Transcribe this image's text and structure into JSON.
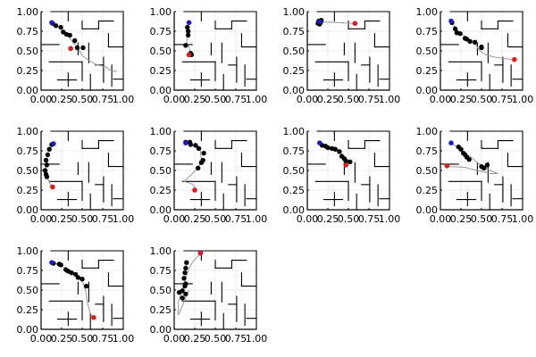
{
  "chart_data": {
    "type": "scatter",
    "layout": "grid 3 rows x 4 columns, 10 panels",
    "axis": {
      "xlim": [
        0,
        1
      ],
      "ylim": [
        0,
        1
      ],
      "xticks": [
        0.0,
        0.25,
        0.5,
        0.75,
        1.0
      ],
      "yticks": [
        0.0,
        0.25,
        0.5,
        0.75,
        1.0
      ],
      "xtick_labels": [
        "0.00",
        "0.25",
        "0.50",
        "0.75",
        "1.00"
      ],
      "ytick_labels": [
        "0.00",
        "0.25",
        "0.50",
        "0.75",
        "1.00"
      ],
      "grid": true
    },
    "colors": {
      "path": "#999999",
      "waypoint": "#000000",
      "start": "#1a1ad0",
      "end": "#dd1c1c",
      "wall": "#000000",
      "grid": "#e6e6e6"
    },
    "maze_walls": [
      [
        [
          0.12,
          1.0
        ],
        [
          1.0,
          1.0
        ]
      ],
      [
        [
          1.0,
          1.0
        ],
        [
          1.0,
          0.0
        ]
      ],
      [
        [
          0.0,
          0.0
        ],
        [
          1.0,
          0.0
        ]
      ],
      [
        [
          0.33,
          0.88
        ],
        [
          0.33,
          1.0
        ]
      ],
      [
        [
          0.5,
          0.88
        ],
        [
          0.5,
          0.78
        ]
      ],
      [
        [
          0.5,
          0.78
        ],
        [
          0.7,
          0.78
        ]
      ],
      [
        [
          0.7,
          0.78
        ],
        [
          0.7,
          0.88
        ]
      ],
      [
        [
          0.7,
          0.88
        ],
        [
          0.88,
          0.88
        ]
      ],
      [
        [
          0.0,
          0.58
        ],
        [
          0.22,
          0.58
        ]
      ],
      [
        [
          0.45,
          0.6
        ],
        [
          0.45,
          0.45
        ]
      ],
      [
        [
          0.58,
          0.6
        ],
        [
          0.58,
          0.35
        ]
      ],
      [
        [
          0.82,
          0.72
        ],
        [
          0.82,
          0.55
        ]
      ],
      [
        [
          0.82,
          0.55
        ],
        [
          1.0,
          0.55
        ]
      ],
      [
        [
          0.1,
          0.36
        ],
        [
          0.5,
          0.36
        ]
      ],
      [
        [
          0.5,
          0.36
        ],
        [
          0.5,
          0.12
        ]
      ],
      [
        [
          0.66,
          0.32
        ],
        [
          0.76,
          0.32
        ]
      ],
      [
        [
          0.76,
          0.42
        ],
        [
          0.76,
          0.1
        ]
      ],
      [
        [
          0.86,
          0.32
        ],
        [
          0.86,
          0.05
        ]
      ],
      [
        [
          0.33,
          0.22
        ],
        [
          0.33,
          0.05
        ]
      ],
      [
        [
          0.2,
          0.13
        ],
        [
          0.43,
          0.13
        ]
      ],
      [
        [
          0.6,
          0.2
        ],
        [
          0.6,
          0.0
        ]
      ],
      [
        [
          0.88,
          0.14
        ],
        [
          1.0,
          0.14
        ]
      ]
    ],
    "panels": [
      {
        "path": [
          [
            0.13,
            0.85
          ],
          [
            0.22,
            0.8
          ],
          [
            0.3,
            0.72
          ],
          [
            0.38,
            0.62
          ],
          [
            0.44,
            0.55
          ],
          [
            0.5,
            0.44
          ],
          [
            0.58,
            0.38
          ],
          [
            0.68,
            0.32
          ],
          [
            0.78,
            0.3
          ],
          [
            0.86,
            0.24
          ],
          [
            0.92,
            0.24
          ]
        ],
        "points": [
          [
            0.14,
            0.85
          ],
          [
            0.18,
            0.82
          ],
          [
            0.24,
            0.8
          ],
          [
            0.27,
            0.74
          ],
          [
            0.31,
            0.71
          ],
          [
            0.35,
            0.7
          ],
          [
            0.41,
            0.63
          ],
          [
            0.44,
            0.54
          ],
          [
            0.51,
            0.54
          ]
        ],
        "start": [
          0.13,
          0.86
        ],
        "end": [
          0.36,
          0.53
        ]
      },
      {
        "path": [
          [
            0.16,
            0.85
          ],
          [
            0.18,
            0.78
          ],
          [
            0.15,
            0.62
          ],
          [
            0.18,
            0.55
          ],
          [
            0.2,
            0.46
          ],
          [
            0.2,
            0.43
          ]
        ],
        "points": [
          [
            0.16,
            0.8
          ],
          [
            0.17,
            0.75
          ],
          [
            0.17,
            0.7
          ],
          [
            0.14,
            0.57
          ],
          [
            0.2,
            0.47
          ],
          [
            0.21,
            0.45
          ]
        ],
        "start": [
          0.18,
          0.86
        ],
        "end": [
          0.18,
          0.45
        ]
      },
      {
        "path": [
          [
            0.14,
            0.87
          ],
          [
            0.58,
            0.85
          ]
        ],
        "points": [
          [
            0.14,
            0.88
          ],
          [
            0.16,
            0.86
          ],
          [
            0.15,
            0.84
          ],
          [
            0.17,
            0.89
          ],
          [
            0.13,
            0.85
          ]
        ],
        "start": [
          0.15,
          0.87
        ],
        "end": [
          0.58,
          0.85
        ]
      },
      {
        "path": [
          [
            0.13,
            0.87
          ],
          [
            0.22,
            0.75
          ],
          [
            0.3,
            0.68
          ],
          [
            0.4,
            0.62
          ],
          [
            0.48,
            0.5
          ],
          [
            0.55,
            0.45
          ],
          [
            0.66,
            0.42
          ],
          [
            0.78,
            0.4
          ],
          [
            0.9,
            0.39
          ]
        ],
        "points": [
          [
            0.14,
            0.86
          ],
          [
            0.18,
            0.78
          ],
          [
            0.2,
            0.73
          ],
          [
            0.24,
            0.72
          ],
          [
            0.3,
            0.66
          ],
          [
            0.32,
            0.65
          ],
          [
            0.36,
            0.62
          ],
          [
            0.42,
            0.61
          ],
          [
            0.5,
            0.55
          ],
          [
            0.5,
            0.54
          ]
        ],
        "start": [
          0.13,
          0.88
        ],
        "end": [
          0.9,
          0.39
        ]
      },
      {
        "path": [
          [
            0.15,
            0.85
          ],
          [
            0.08,
            0.72
          ],
          [
            0.06,
            0.6
          ],
          [
            0.05,
            0.5
          ],
          [
            0.08,
            0.4
          ],
          [
            0.12,
            0.3
          ]
        ],
        "points": [
          [
            0.13,
            0.83
          ],
          [
            0.1,
            0.77
          ],
          [
            0.08,
            0.7
          ],
          [
            0.06,
            0.63
          ],
          [
            0.07,
            0.57
          ],
          [
            0.05,
            0.5
          ],
          [
            0.06,
            0.45
          ],
          [
            0.07,
            0.42
          ]
        ],
        "start": [
          0.15,
          0.84
        ],
        "end": [
          0.14,
          0.29
        ]
      },
      {
        "path": [
          [
            0.12,
            0.85
          ],
          [
            0.24,
            0.82
          ],
          [
            0.32,
            0.75
          ],
          [
            0.33,
            0.62
          ],
          [
            0.28,
            0.52
          ],
          [
            0.18,
            0.42
          ],
          [
            0.12,
            0.36
          ],
          [
            0.22,
            0.33
          ],
          [
            0.26,
            0.28
          ]
        ],
        "points": [
          [
            0.14,
            0.86
          ],
          [
            0.19,
            0.86
          ],
          [
            0.2,
            0.83
          ],
          [
            0.26,
            0.82
          ],
          [
            0.3,
            0.78
          ],
          [
            0.36,
            0.72
          ],
          [
            0.35,
            0.63
          ],
          [
            0.33,
            0.6
          ],
          [
            0.29,
            0.53
          ]
        ],
        "start": [
          0.14,
          0.85
        ],
        "end": [
          0.25,
          0.25
        ]
      },
      {
        "path": [
          [
            0.15,
            0.85
          ],
          [
            0.25,
            0.8
          ],
          [
            0.38,
            0.75
          ],
          [
            0.45,
            0.68
          ],
          [
            0.5,
            0.6
          ],
          [
            0.47,
            0.55
          ]
        ],
        "points": [
          [
            0.18,
            0.82
          ],
          [
            0.22,
            0.81
          ],
          [
            0.25,
            0.79
          ],
          [
            0.3,
            0.78
          ],
          [
            0.34,
            0.77
          ],
          [
            0.39,
            0.74
          ],
          [
            0.42,
            0.68
          ],
          [
            0.45,
            0.65
          ],
          [
            0.47,
            0.62
          ],
          [
            0.52,
            0.61
          ]
        ],
        "start": [
          0.15,
          0.85
        ],
        "end": [
          0.47,
          0.57
        ]
      },
      {
        "path": [
          [
            0.13,
            0.85
          ],
          [
            0.2,
            0.8
          ],
          [
            0.28,
            0.72
          ],
          [
            0.36,
            0.68
          ],
          [
            0.45,
            0.6
          ],
          [
            0.52,
            0.55
          ],
          [
            0.6,
            0.5
          ],
          [
            0.7,
            0.46
          ],
          [
            0.62,
            0.46
          ],
          [
            0.45,
            0.5
          ],
          [
            0.3,
            0.54
          ],
          [
            0.1,
            0.55
          ]
        ],
        "points": [
          [
            0.22,
            0.8
          ],
          [
            0.25,
            0.77
          ],
          [
            0.28,
            0.72
          ],
          [
            0.3,
            0.7
          ],
          [
            0.32,
            0.67
          ],
          [
            0.35,
            0.64
          ],
          [
            0.5,
            0.55
          ],
          [
            0.53,
            0.53
          ],
          [
            0.57,
            0.57
          ]
        ],
        "start": [
          0.13,
          0.85
        ],
        "end": [
          0.08,
          0.56
        ]
      },
      {
        "path": [
          [
            0.12,
            0.85
          ],
          [
            0.22,
            0.83
          ],
          [
            0.32,
            0.76
          ],
          [
            0.42,
            0.7
          ],
          [
            0.5,
            0.62
          ],
          [
            0.54,
            0.5
          ],
          [
            0.56,
            0.35
          ],
          [
            0.6,
            0.2
          ],
          [
            0.64,
            0.15
          ]
        ],
        "points": [
          [
            0.15,
            0.84
          ],
          [
            0.22,
            0.83
          ],
          [
            0.24,
            0.82
          ],
          [
            0.3,
            0.76
          ],
          [
            0.33,
            0.74
          ],
          [
            0.37,
            0.72
          ],
          [
            0.42,
            0.7
          ],
          [
            0.45,
            0.66
          ],
          [
            0.5,
            0.64
          ],
          [
            0.55,
            0.55
          ]
        ],
        "start": [
          0.13,
          0.85
        ],
        "end": [
          0.64,
          0.15
        ]
      },
      {
        "path": [
          [
            0.32,
            0.97
          ],
          [
            0.22,
            0.85
          ],
          [
            0.16,
            0.72
          ],
          [
            0.1,
            0.5
          ],
          [
            0.05,
            0.35
          ],
          [
            0.05,
            0.18
          ],
          [
            0.12,
            0.35
          ],
          [
            0.18,
            0.5
          ]
        ],
        "points": [
          [
            0.15,
            0.85
          ],
          [
            0.14,
            0.78
          ],
          [
            0.13,
            0.72
          ],
          [
            0.12,
            0.65
          ],
          [
            0.14,
            0.58
          ],
          [
            0.13,
            0.55
          ],
          [
            0.1,
            0.49
          ],
          [
            0.06,
            0.47
          ],
          [
            0.14,
            0.45
          ],
          [
            0.1,
            0.4
          ]
        ],
        "start": [
          0.32,
          0.97
        ],
        "end": [
          0.32,
          0.97
        ]
      }
    ]
  }
}
